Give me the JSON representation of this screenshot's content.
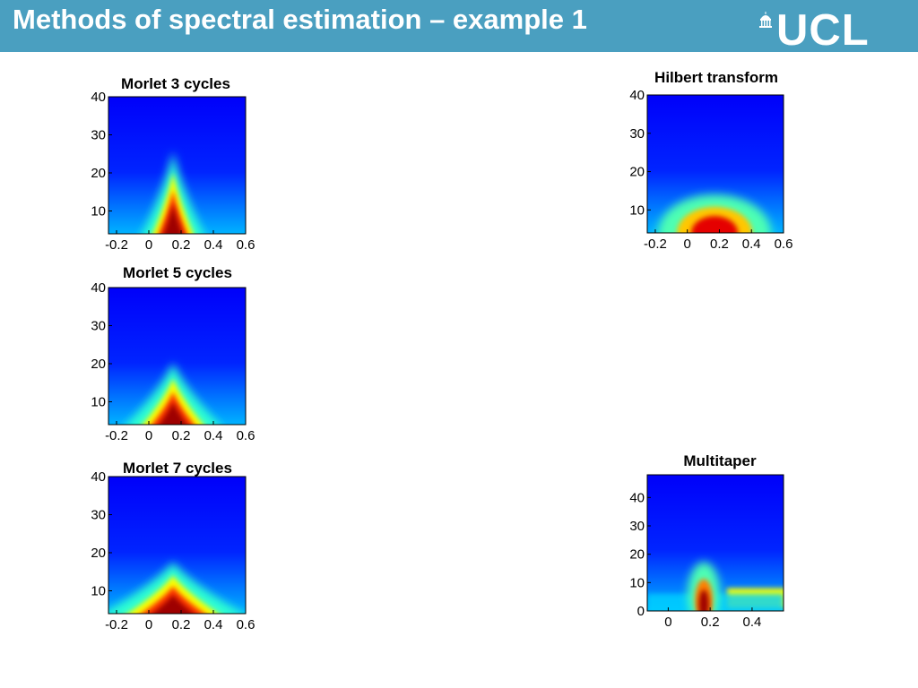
{
  "slide": {
    "title": "Methods of spectral estimation – example 1",
    "logo_text": "UCL"
  },
  "colors": {
    "header": "#4a9fc0",
    "text_on_header": "#ffffff"
  },
  "chart_data": [
    {
      "type": "heatmap",
      "title": "Morlet 3 cycles",
      "xlim": [
        -0.25,
        0.6
      ],
      "ylim": [
        4,
        40
      ],
      "xticks": [
        "-0.2",
        "0",
        "0.2",
        "0.4",
        "0.6"
      ],
      "yticks": [
        "10",
        "20",
        "30",
        "40"
      ],
      "colormap": "jet",
      "peak": {
        "time": 0.15,
        "freq_low": 4,
        "freq_high": 20,
        "shape": "narrow cone"
      }
    },
    {
      "type": "heatmap",
      "title": "Morlet 5 cycles",
      "xlim": [
        -0.25,
        0.6
      ],
      "ylim": [
        4,
        40
      ],
      "xticks": [
        "-0.2",
        "0",
        "0.2",
        "0.4",
        "0.6"
      ],
      "yticks": [
        "10",
        "20",
        "30",
        "40"
      ],
      "colormap": "jet",
      "peak": {
        "time": 0.15,
        "freq_low": 4,
        "freq_high": 16,
        "shape": "cone"
      }
    },
    {
      "type": "heatmap",
      "title": "Morlet 7 cycles",
      "xlim": [
        -0.25,
        0.6
      ],
      "ylim": [
        4,
        40
      ],
      "xticks": [
        "-0.2",
        "0",
        "0.2",
        "0.4",
        "0.6"
      ],
      "yticks": [
        "10",
        "20",
        "30",
        "40"
      ],
      "colormap": "jet",
      "peak": {
        "time": 0.15,
        "freq_low": 4,
        "freq_high": 14,
        "shape": "wide cone"
      }
    },
    {
      "type": "heatmap",
      "title": "Hilbert transform",
      "xlim": [
        -0.25,
        0.6
      ],
      "ylim": [
        4,
        40
      ],
      "xticks": [
        "-0.2",
        "0",
        "0.2",
        "0.4",
        "0.6"
      ],
      "yticks": [
        "10",
        "20",
        "30",
        "40"
      ],
      "colormap": "jet",
      "peak": {
        "time": 0.17,
        "freq_low": 4,
        "freq_high": 12,
        "shape": "dome"
      }
    },
    {
      "type": "heatmap",
      "title": "Multitaper",
      "xlim": [
        -0.1,
        0.55
      ],
      "ylim": [
        0,
        48
      ],
      "xticks": [
        "0",
        "0.2",
        "0.4"
      ],
      "yticks": [
        "0",
        "10",
        "20",
        "30",
        "40"
      ],
      "colormap": "jet",
      "peak": {
        "time": 0.17,
        "freq_low": 0,
        "freq_high": 15,
        "shape": "narrow column"
      }
    }
  ]
}
